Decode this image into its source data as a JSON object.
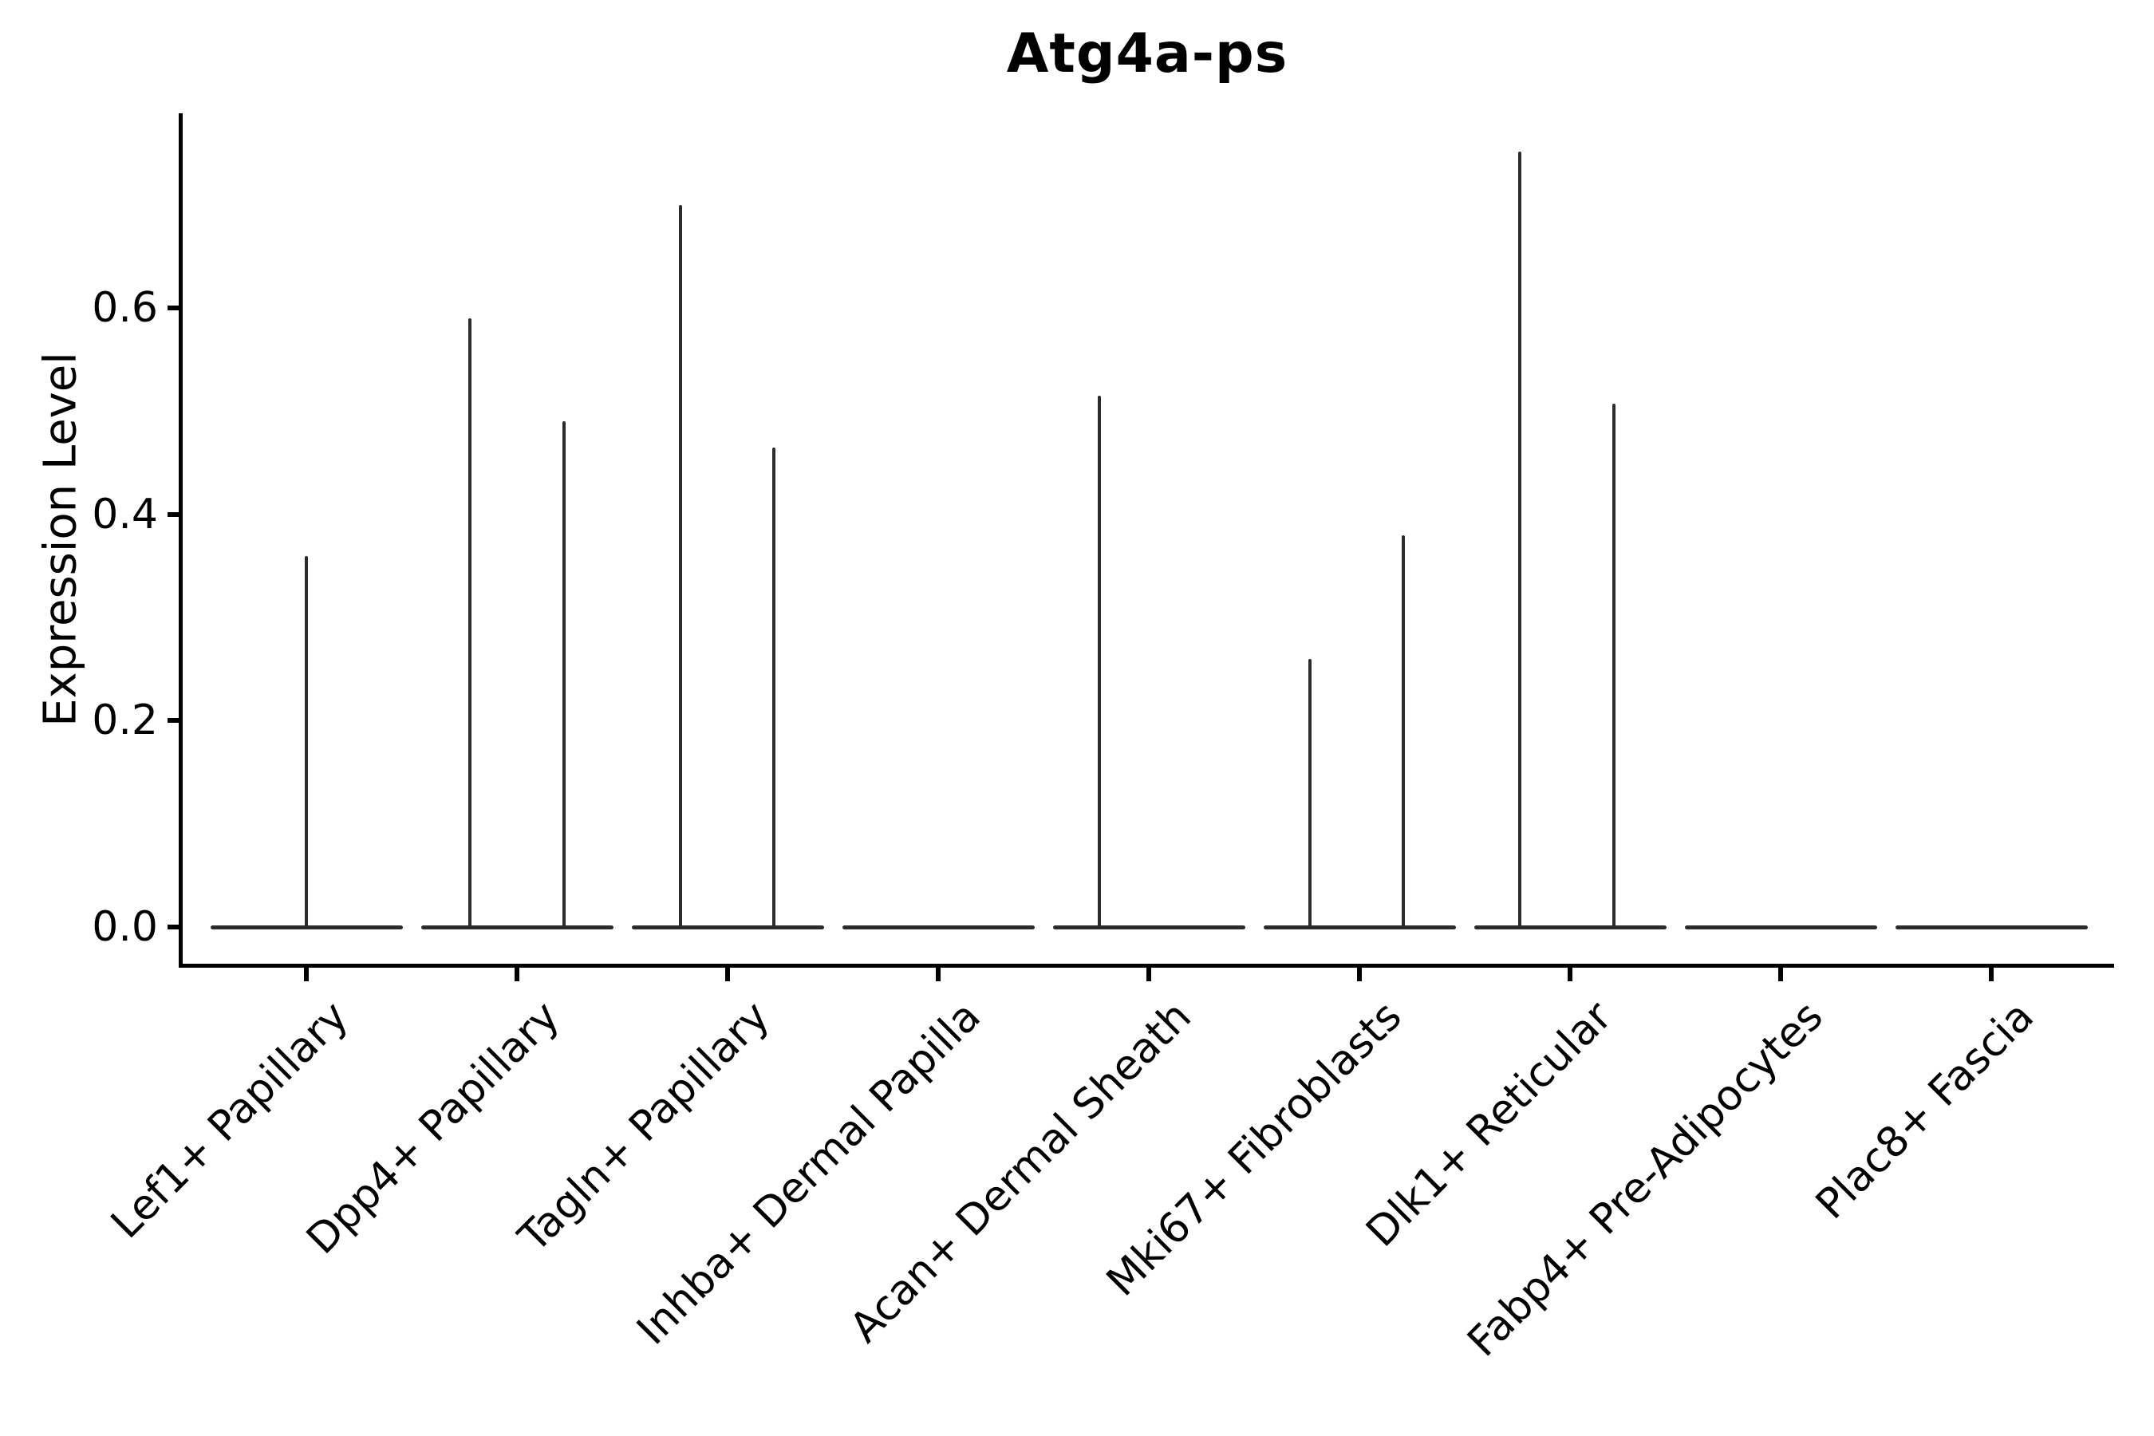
{
  "title": "Atg4a-ps",
  "ylabel": "Expression Level",
  "colors": {
    "background": "#ffffff",
    "axis": "#000000",
    "text": "#000000",
    "violin_line": "#2b2b2b"
  },
  "chart_data": {
    "type": "violin",
    "title": "Atg4a-ps",
    "xlabel": "",
    "ylabel": "Expression Level",
    "grid": false,
    "legend": "none",
    "ylim": [
      -0.04,
      0.79
    ],
    "y_ticks": [
      0.0,
      0.2,
      0.4,
      0.6
    ],
    "y_tick_labels": [
      "0.0",
      "0.2",
      "0.4",
      "0.6"
    ],
    "x_tick_rotation_deg": 45,
    "categories": [
      "Lef1+ Papillary",
      "Dpp4+ Papillary",
      "Tagln+ Papillary",
      "Inhba+ Dermal Papilla",
      "Acan+ Dermal Sheath",
      "Mki67+ Fibroblasts",
      "Dlk1+ Reticular",
      "Fabp4+ Pre-Adipocytes",
      "Plac8+ Fascia"
    ],
    "description": "Violin plot of expression per cluster; each violin collapses to a flat line at 0 with thin spikes marking the maximum expression tail(s). Spike x_offset is in category-width units relative to the category center; peak is the Expression Level at the spike top.",
    "violins": [
      {
        "category": "Lef1+ Papillary",
        "baseline_value": 0.0,
        "spikes": [
          {
            "x_offset": 0.0,
            "peak": 0.36
          }
        ]
      },
      {
        "category": "Dpp4+ Papillary",
        "baseline_value": 0.0,
        "spikes": [
          {
            "x_offset": -0.225,
            "peak": 0.59
          },
          {
            "x_offset": 0.225,
            "peak": 0.49
          }
        ]
      },
      {
        "category": "Tagln+ Papillary",
        "baseline_value": 0.0,
        "spikes": [
          {
            "x_offset": -0.225,
            "peak": 0.7
          },
          {
            "x_offset": 0.22,
            "peak": 0.465
          }
        ]
      },
      {
        "category": "Inhba+ Dermal Papilla",
        "baseline_value": 0.0,
        "spikes": []
      },
      {
        "category": "Acan+ Dermal Sheath",
        "baseline_value": 0.0,
        "spikes": [
          {
            "x_offset": -0.235,
            "peak": 0.515
          }
        ]
      },
      {
        "category": "Mki67+ Fibroblasts",
        "baseline_value": 0.0,
        "spikes": [
          {
            "x_offset": -0.235,
            "peak": 0.26
          },
          {
            "x_offset": 0.21,
            "peak": 0.38
          }
        ]
      },
      {
        "category": "Dlk1+ Reticular",
        "baseline_value": 0.0,
        "spikes": [
          {
            "x_offset": -0.24,
            "peak": 0.752
          },
          {
            "x_offset": 0.21,
            "peak": 0.507
          }
        ]
      },
      {
        "category": "Fabp4+ Pre-Adipocytes",
        "baseline_value": 0.0,
        "spikes": []
      },
      {
        "category": "Plac8+ Fascia",
        "baseline_value": 0.0,
        "spikes": []
      }
    ]
  }
}
